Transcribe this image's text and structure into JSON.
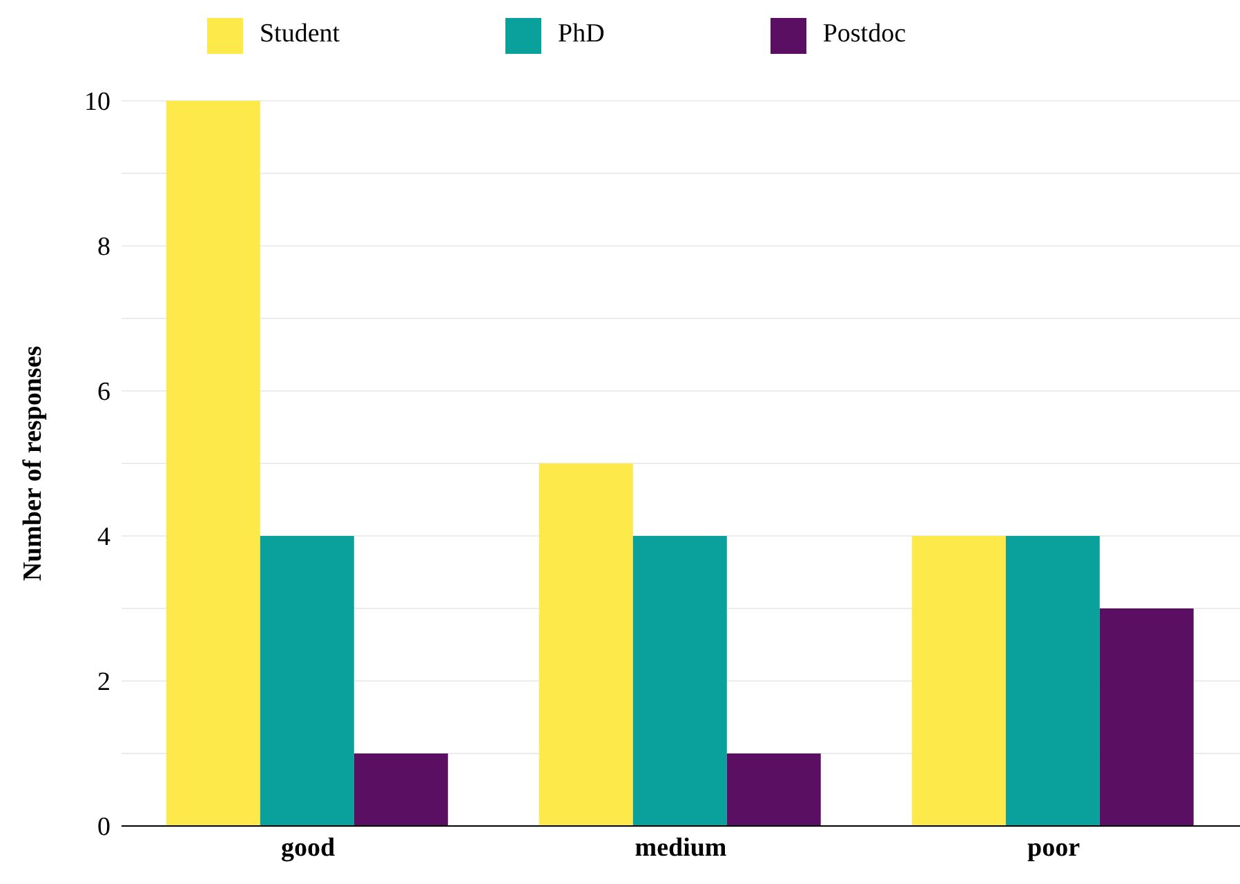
{
  "chart_data": {
    "type": "bar",
    "ylabel": "Number of responses",
    "categories": [
      "good",
      "medium",
      "poor"
    ],
    "series": [
      {
        "name": "Student",
        "color": "#fde94a",
        "values": [
          10,
          5,
          4
        ]
      },
      {
        "name": "PhD",
        "color": "#0aa19c",
        "values": [
          4,
          4,
          4
        ]
      },
      {
        "name": "Postdoc",
        "color": "#5a0f63",
        "values": [
          1,
          1,
          3
        ]
      }
    ],
    "ylim": [
      0,
      10
    ],
    "yticks": [
      0,
      {
        "value": 1,
        "label": null
      },
      2,
      {
        "value": 3,
        "label": null
      },
      4,
      {
        "value": 5,
        "label": null
      },
      6,
      {
        "value": 7,
        "label": null
      },
      8,
      {
        "value": 9,
        "label": null
      },
      10
    ],
    "grid": "y",
    "legend": "top"
  }
}
